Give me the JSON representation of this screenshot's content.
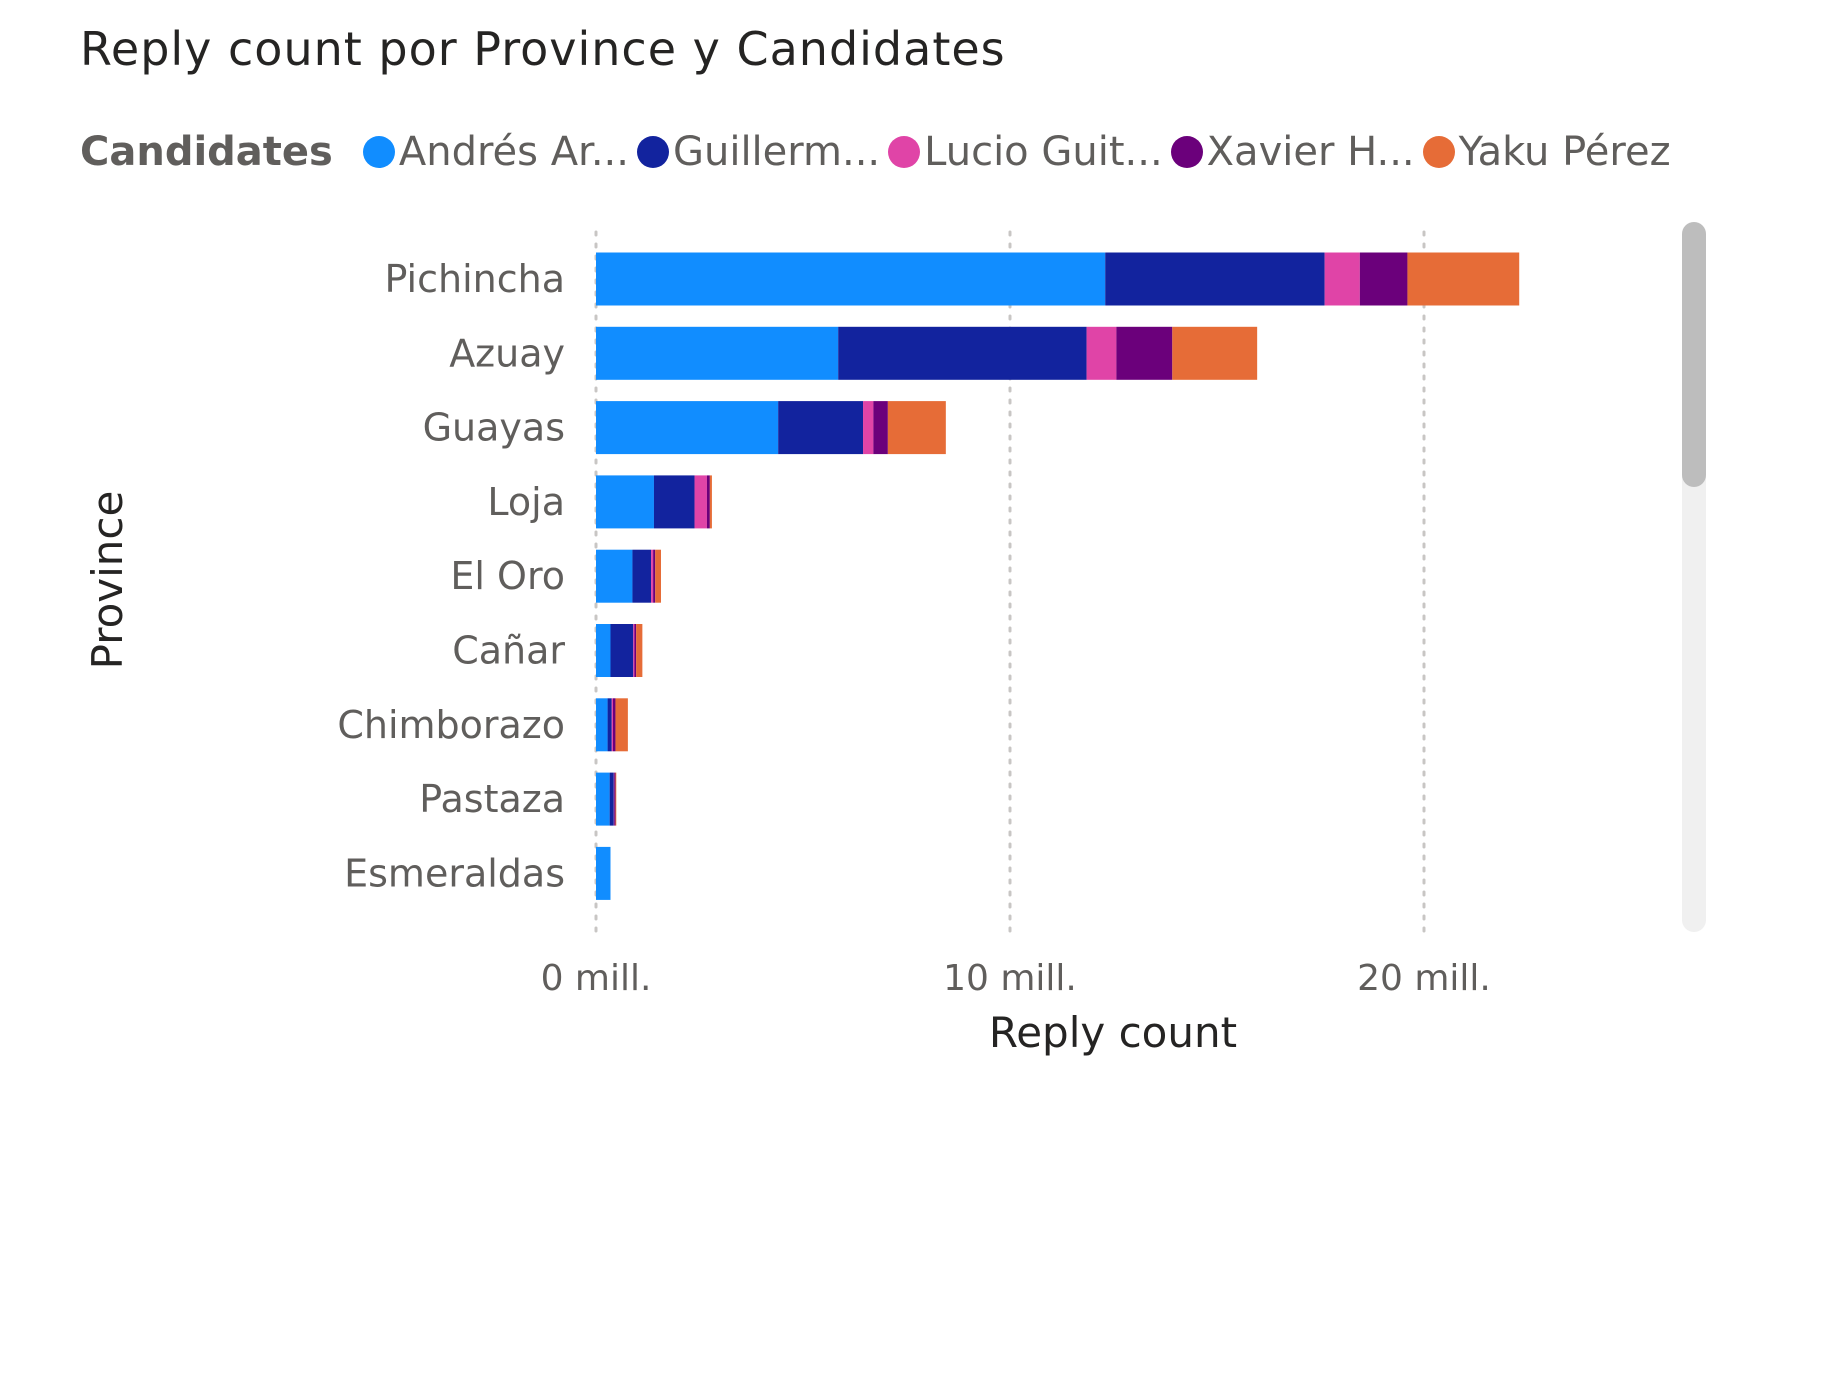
{
  "chart_data": {
    "type": "bar",
    "orientation": "horizontal",
    "stacked": true,
    "title": "Reply count por Province y Candidates",
    "xlabel": "Reply count",
    "ylabel": "Province",
    "legend_title": "Candidates",
    "legend_position": "top-left",
    "grid": true,
    "xlim": [
      0,
      25
    ],
    "x_ticks": [
      {
        "value": 0,
        "label": "0 mill."
      },
      {
        "value": 10,
        "label": "10 mill."
      },
      {
        "value": 20,
        "label": "20 mill."
      }
    ],
    "categories": [
      "Pichincha",
      "Azuay",
      "Guayas",
      "Loja",
      "El Oro",
      "Cañar",
      "Chimborazo",
      "Pastaza",
      "Esmeraldas"
    ],
    "series": [
      {
        "name": "Andrés Ar...",
        "color": "#118dff",
        "values": [
          12.3,
          5.85,
          4.4,
          1.4,
          0.88,
          0.35,
          0.28,
          0.33,
          0.35
        ]
      },
      {
        "name": "Guillerm...",
        "color": "#12239e",
        "values": [
          5.3,
          6.0,
          2.05,
          0.98,
          0.45,
          0.55,
          0.1,
          0.1,
          0.0
        ]
      },
      {
        "name": "Lucio Guit...",
        "color": "#e044a7",
        "values": [
          0.85,
          0.72,
          0.25,
          0.3,
          0.05,
          0.03,
          0.03,
          0.01,
          0.0
        ]
      },
      {
        "name": "Xavier H...",
        "color": "#6b007b",
        "values": [
          1.15,
          1.35,
          0.35,
          0.07,
          0.05,
          0.04,
          0.06,
          0.03,
          0.0
        ]
      },
      {
        "name": "Yaku Pérez",
        "color": "#e66c37",
        "values": [
          2.7,
          2.05,
          1.4,
          0.05,
          0.14,
          0.15,
          0.3,
          0.02,
          0.0
        ]
      }
    ]
  }
}
